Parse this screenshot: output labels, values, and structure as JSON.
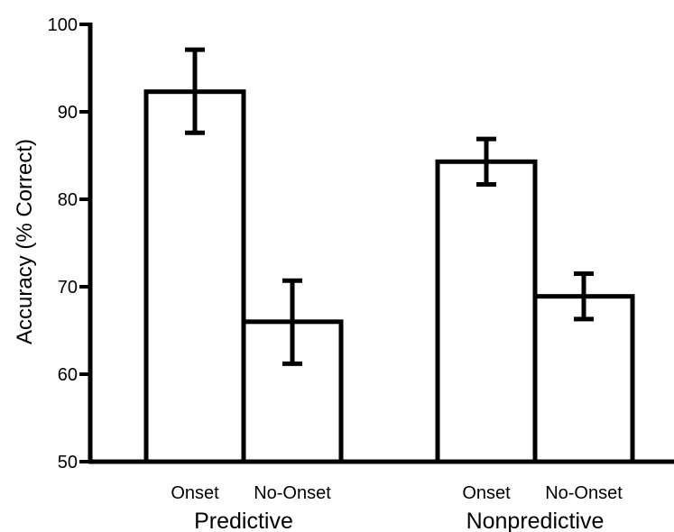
{
  "chart_data": {
    "type": "bar",
    "ylabel": "Accuracy (% Correct)",
    "xlabel": "",
    "ylim": [
      50,
      100
    ],
    "yticks": [
      50,
      60,
      70,
      80,
      90,
      100
    ],
    "grid": false,
    "groups": [
      {
        "name": "Predictive",
        "bars": [
          {
            "label": "Onset",
            "value": 92.3,
            "error_low": 87.6,
            "error_high": 97.1
          },
          {
            "label": "No-Onset",
            "value": 66.0,
            "error_low": 61.2,
            "error_high": 70.7
          }
        ]
      },
      {
        "name": "Nonpredictive",
        "bars": [
          {
            "label": "Onset",
            "value": 84.3,
            "error_low": 81.7,
            "error_high": 86.9
          },
          {
            "label": "No-Onset",
            "value": 68.9,
            "error_low": 66.3,
            "error_high": 71.5
          }
        ]
      }
    ],
    "colors": {
      "bar_fill": "#ffffff",
      "stroke": "#000000"
    }
  }
}
